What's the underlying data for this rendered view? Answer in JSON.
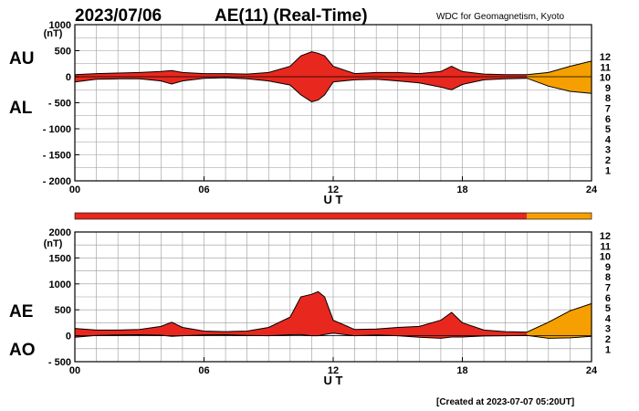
{
  "header": {
    "date": "2023/07/06",
    "title": "AE(11) (Real-Time)",
    "source": "WDC for Geomagnetism, Kyoto"
  },
  "footer": {
    "created": "[Created at 2023-07-07 05:20UT]"
  },
  "station_legend": {
    "items": [
      {
        "label": "12",
        "color": "#e8006e"
      },
      {
        "label": "11",
        "color": "#e8281e"
      },
      {
        "label": "10",
        "color": "#f5a000"
      },
      {
        "label": "9",
        "color": "#e6d200"
      },
      {
        "label": "8",
        "color": "#7cd400"
      },
      {
        "label": "7",
        "color": "#00c8c8"
      },
      {
        "label": "6",
        "color": "#1e78ff"
      },
      {
        "label": "5",
        "color": "#3c1ec8"
      },
      {
        "label": "4",
        "color": "#dc00dc"
      },
      {
        "label": "3",
        "color": "#000000"
      },
      {
        "label": "2",
        "color": "#808080"
      },
      {
        "label": "1",
        "color": "#c8c8c8"
      }
    ]
  },
  "chart_data": [
    {
      "type": "area",
      "title": "AU / AL",
      "upper_label": "AU",
      "lower_label": "AL",
      "yunit": "(nT)",
      "xlabel": "U T",
      "xlim": [
        0,
        24
      ],
      "ylim": [
        -2000,
        1000
      ],
      "xticks": [
        0,
        6,
        12,
        18,
        24
      ],
      "xtick_labels": [
        "00",
        "06",
        "12",
        "18",
        "24"
      ],
      "yticks": [
        1000,
        500,
        0,
        -500,
        -1000,
        -1500,
        -2000
      ],
      "ytick_labels": [
        "1000",
        "500",
        "0",
        "- 500",
        "- 1000",
        "- 1500",
        "- 2000"
      ],
      "fill_color": "#e8281e",
      "series": [
        {
          "name": "AU",
          "x": [
            0,
            1,
            2,
            3,
            4,
            4.5,
            5,
            6,
            7,
            8,
            9,
            10,
            10.5,
            11,
            11.3,
            11.6,
            12,
            13,
            14,
            15,
            16,
            17,
            17.5,
            18,
            19,
            20,
            21,
            22,
            23,
            24
          ],
          "values": [
            40,
            60,
            70,
            80,
            100,
            120,
            80,
            60,
            60,
            50,
            80,
            200,
            400,
            480,
            450,
            400,
            200,
            60,
            80,
            80,
            60,
            100,
            200,
            100,
            50,
            40,
            40,
            80,
            200,
            300
          ]
        },
        {
          "name": "AL",
          "x": [
            0,
            1,
            2,
            3,
            4,
            4.5,
            5,
            6,
            7,
            8,
            9,
            10,
            10.5,
            11,
            11.3,
            11.6,
            12,
            13,
            14,
            15,
            16,
            17,
            17.5,
            18,
            19,
            20,
            21,
            22,
            23,
            24
          ],
          "values": [
            -100,
            -50,
            -40,
            -40,
            -80,
            -140,
            -80,
            -30,
            -20,
            -40,
            -80,
            -160,
            -350,
            -480,
            -450,
            -350,
            -100,
            -60,
            -50,
            -80,
            -120,
            -200,
            -250,
            -150,
            -60,
            -40,
            -30,
            -180,
            -280,
            -320
          ]
        }
      ],
      "station_count_bar": [
        {
          "from": 0,
          "to": 21,
          "stations": 11
        },
        {
          "from": 21,
          "to": 24,
          "stations": 10
        }
      ]
    },
    {
      "type": "area",
      "title": "AE / AO",
      "upper_label": "AE",
      "lower_label": "AO",
      "yunit": "(nT)",
      "xlabel": "U T",
      "xlim": [
        0,
        24
      ],
      "ylim": [
        -500,
        2000
      ],
      "xticks": [
        0,
        6,
        12,
        18,
        24
      ],
      "xtick_labels": [
        "00",
        "06",
        "12",
        "18",
        "24"
      ],
      "yticks": [
        2000,
        1500,
        1000,
        500,
        0,
        -500
      ],
      "ytick_labels": [
        "2000",
        "1500",
        "1000",
        "500",
        "0",
        "- 500"
      ],
      "fill_color": "#e8281e",
      "series": [
        {
          "name": "AE",
          "x": [
            0,
            1,
            2,
            3,
            4,
            4.5,
            5,
            6,
            7,
            8,
            9,
            10,
            10.5,
            11,
            11.3,
            11.6,
            12,
            13,
            14,
            15,
            16,
            17,
            17.5,
            18,
            19,
            20,
            21,
            22,
            23,
            24
          ],
          "values": [
            140,
            110,
            110,
            120,
            180,
            260,
            160,
            90,
            80,
            90,
            160,
            360,
            750,
            800,
            850,
            750,
            300,
            120,
            130,
            160,
            180,
            300,
            450,
            250,
            110,
            80,
            70,
            260,
            480,
            620
          ]
        },
        {
          "name": "AO",
          "x": [
            0,
            1,
            2,
            3,
            4,
            4.5,
            5,
            6,
            7,
            8,
            9,
            10,
            10.5,
            11,
            11.3,
            11.6,
            12,
            13,
            14,
            15,
            16,
            17,
            17.5,
            18,
            19,
            20,
            21,
            22,
            23,
            24
          ],
          "values": [
            -30,
            5,
            15,
            20,
            10,
            -10,
            0,
            15,
            20,
            5,
            0,
            20,
            25,
            0,
            0,
            25,
            50,
            0,
            15,
            0,
            -30,
            -50,
            -25,
            -25,
            -5,
            0,
            5,
            -50,
            -40,
            -10
          ]
        }
      ]
    }
  ]
}
